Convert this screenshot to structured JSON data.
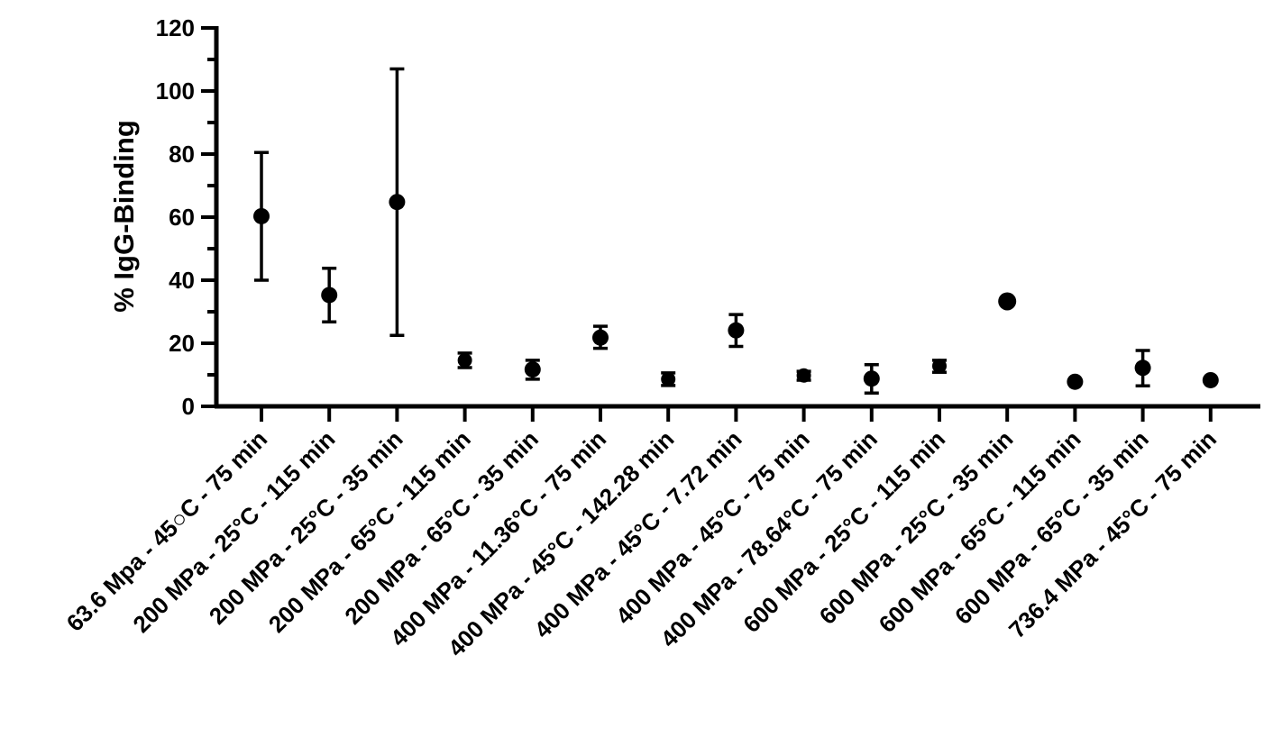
{
  "chart_data": {
    "type": "scatter",
    "title": "",
    "xlabel": "",
    "ylabel": "% IgG-Binding",
    "ylim": [
      0,
      120
    ],
    "yticks": [
      0,
      20,
      40,
      60,
      80,
      100,
      120
    ],
    "grid": false,
    "legend": "none",
    "marker_color": "#000000",
    "categories": [
      "63.6 Mpa - 45○C - 75 min",
      "200 MPa - 25°C - 115 min",
      "200 MPa - 25°C - 35 min",
      "200 MPa - 65°C - 115 min",
      "200 MPa - 65°C - 35 min",
      "400 MPa - 11.36°C - 75 min",
      "400 MPa - 45°C - 142.28 min",
      "400 MPa - 45°C - 7.72 min",
      "400 MPa - 45°C - 75 min",
      "400 MPa - 78.64°C - 75 min",
      "600 MPa - 25°C - 115 min",
      "600 MPa - 25°C - 35 min",
      "600 MPa - 65°C - 115 min",
      "600 MPa - 65°C - 35 min",
      "736.4 MPa - 45°C - 75 min"
    ],
    "values": [
      60.3,
      35.3,
      64.8,
      14.6,
      11.7,
      21.8,
      8.6,
      24.1,
      9.8,
      8.8,
      12.8,
      33.3,
      7.8,
      12.2,
      8.3
    ],
    "error_low": [
      40.0,
      26.8,
      22.5,
      12.3,
      8.6,
      18.4,
      6.6,
      19.0,
      8.3,
      4.2,
      10.8,
      33.3,
      7.8,
      6.5,
      8.3
    ],
    "error_high": [
      80.5,
      43.8,
      107.0,
      16.9,
      14.6,
      25.4,
      10.6,
      29.1,
      11.1,
      13.2,
      14.6,
      33.3,
      7.8,
      17.7,
      8.3
    ]
  }
}
